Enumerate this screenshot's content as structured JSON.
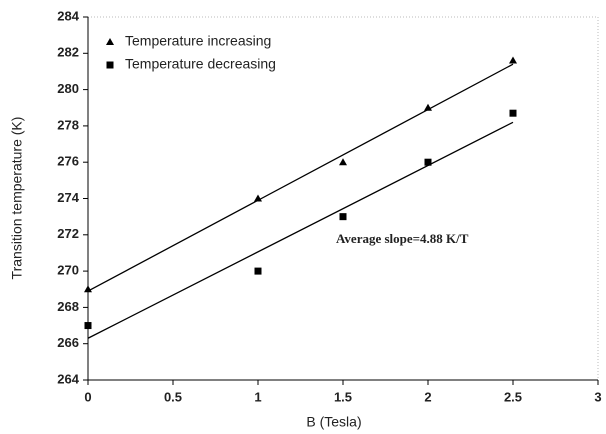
{
  "chart_data": {
    "type": "scatter",
    "xlabel": "B (Tesla)",
    "ylabel": "Transition temperature (K)",
    "annotation": "Average slope=4.88 K/T",
    "xlim": [
      0,
      3
    ],
    "ylim": [
      264,
      284
    ],
    "xticks": [
      0,
      0.5,
      1,
      1.5,
      2,
      2.5,
      3
    ],
    "yticks": [
      264,
      266,
      268,
      270,
      272,
      274,
      276,
      278,
      280,
      282,
      284
    ],
    "legend": "upper left",
    "series": [
      {
        "name": "Temperature increasing",
        "color": "#000000",
        "marker": "triangle",
        "x": [
          0,
          1,
          1.5,
          2,
          2.5
        ],
        "values": [
          269,
          274,
          276,
          279,
          281.6
        ],
        "fit": {
          "x": [
            0,
            2.5
          ],
          "values": [
            268.9,
            281.4
          ]
        }
      },
      {
        "name": "Temperature decreasing",
        "color": "#000000",
        "marker": "square",
        "x": [
          0,
          1,
          1.5,
          2,
          2.5
        ],
        "values": [
          267,
          270,
          273,
          276,
          278.7
        ],
        "fit": {
          "x": [
            0,
            2.5
          ],
          "values": [
            266.3,
            278.2
          ]
        }
      }
    ]
  }
}
